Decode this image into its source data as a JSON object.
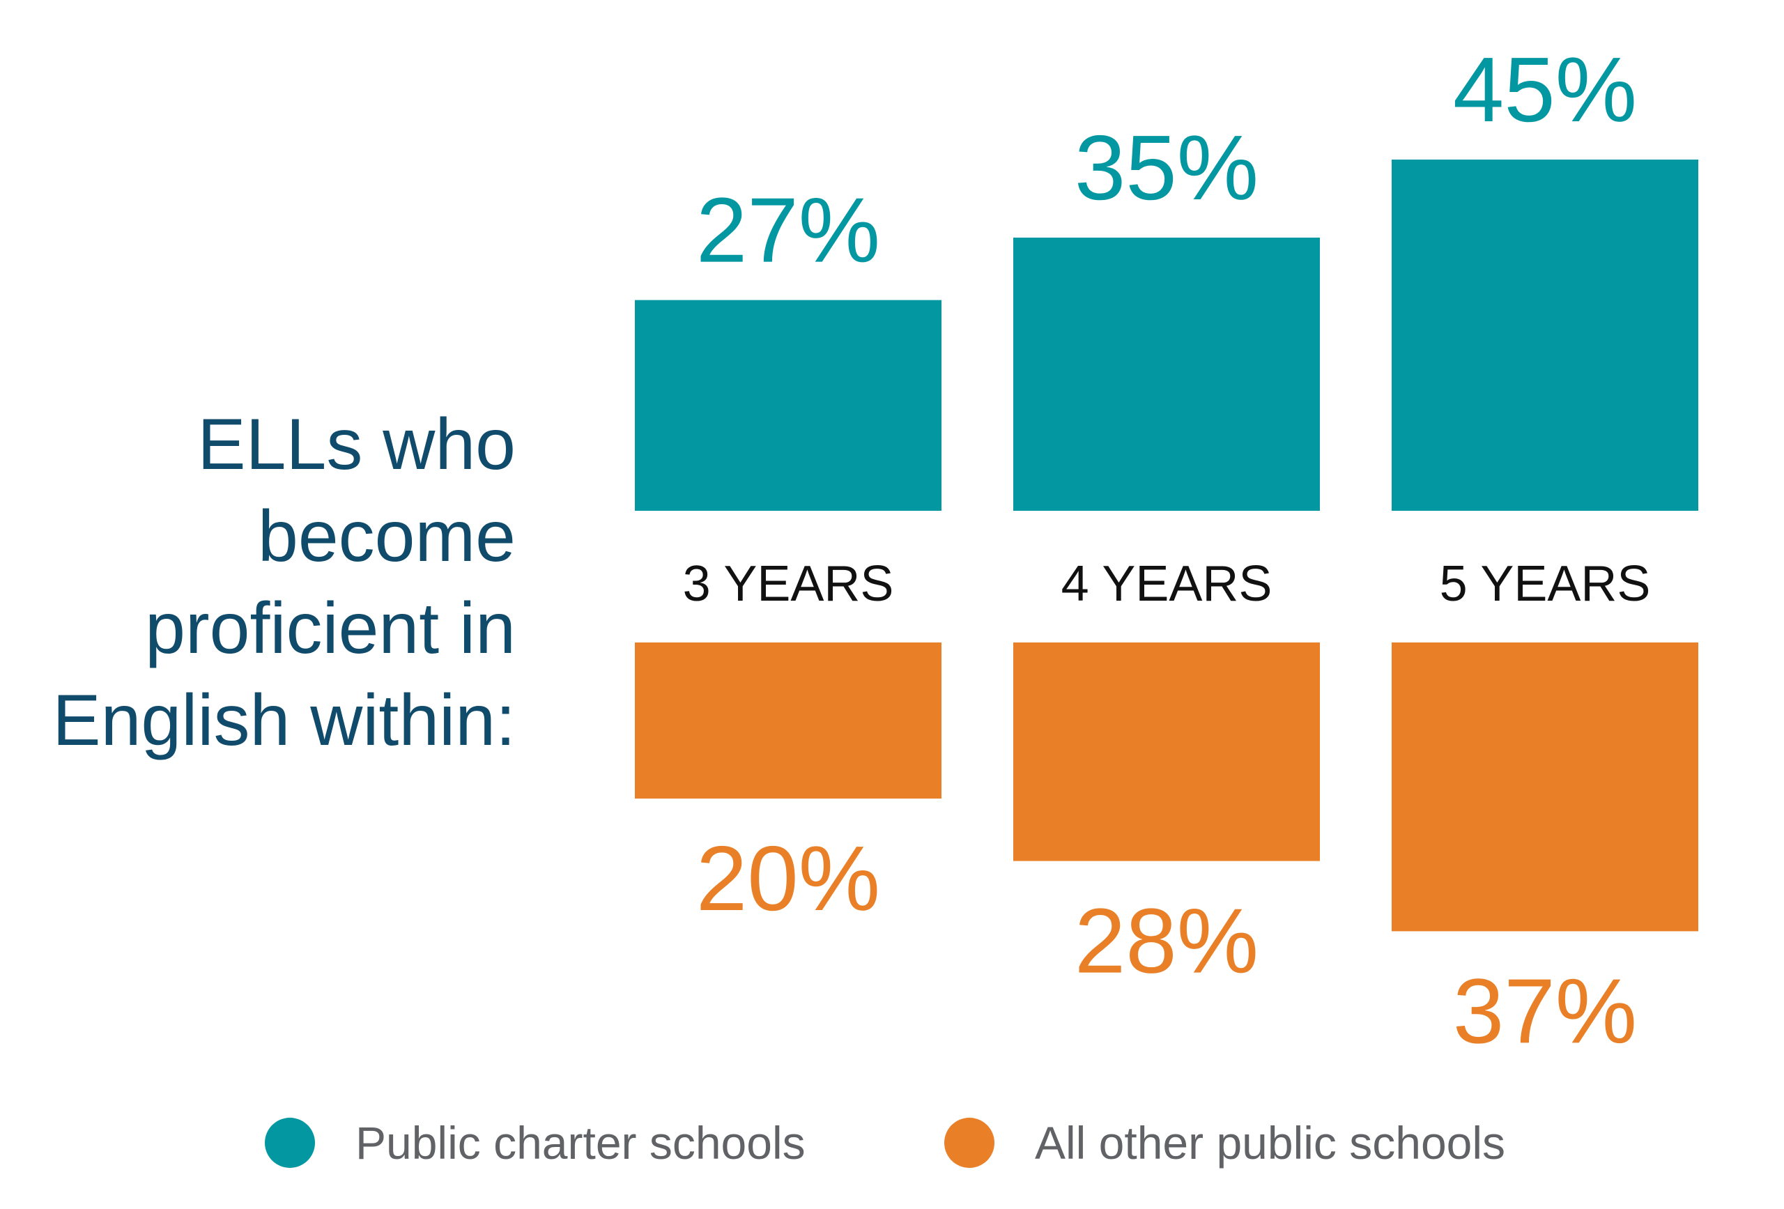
{
  "side_label_lines": [
    "ELLs who",
    "become",
    "proficient in",
    "English within:"
  ],
  "colors": {
    "charter": "#0398a1",
    "other": "#e97f26",
    "side_label": "#104b6b",
    "category_label": "#111111",
    "legend_text": "#606266"
  },
  "legend": {
    "charter": "Public charter schools",
    "other": "All other public schools"
  },
  "chart_data": {
    "type": "bar",
    "title": "",
    "xlabel": "",
    "ylabel": "",
    "categories": [
      "3 YEARS",
      "4 YEARS",
      "5 YEARS"
    ],
    "series": [
      {
        "name": "Public charter schools",
        "values": [
          27,
          35,
          45
        ],
        "labels": [
          "27%",
          "35%",
          "45%"
        ],
        "direction": "up"
      },
      {
        "name": "All other public schools",
        "values": [
          20,
          28,
          37
        ],
        "labels": [
          "20%",
          "28%",
          "37%"
        ],
        "direction": "down"
      }
    ],
    "ylim": [
      0,
      45
    ],
    "grid": false,
    "legend_position": "bottom"
  }
}
